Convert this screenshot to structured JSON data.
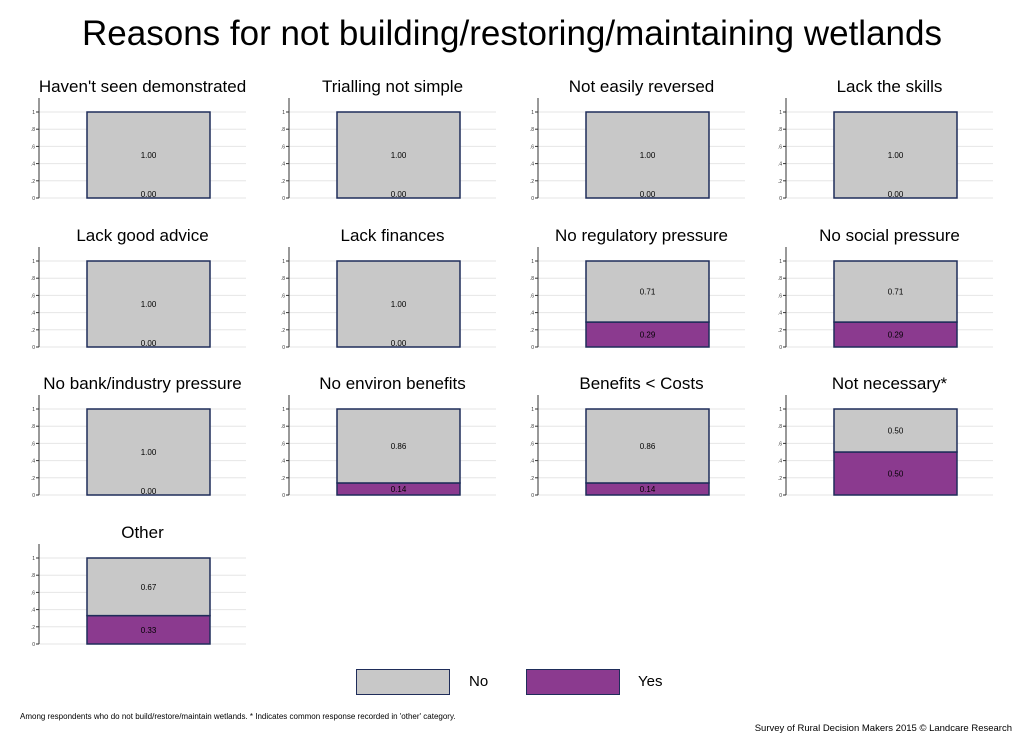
{
  "title": "Reasons for not building/restoring/maintaining wetlands",
  "chart_data": {
    "type": "bar",
    "stacked": true,
    "ylim": [
      0,
      1
    ],
    "yticks": [
      "0",
      ".2",
      ".4",
      ".6",
      ".8",
      "1"
    ],
    "grid": true,
    "legend_position": "bottom",
    "series_order": [
      "Yes",
      "No"
    ],
    "colors": {
      "No": "#c8c8c8",
      "Yes": "#8b3a8f",
      "border": "#1f2d5a"
    },
    "panels": [
      {
        "title": "Haven't seen demonstrated",
        "No": 1.0,
        "Yes": 0.0,
        "no_label": "1.00",
        "yes_label": "0.00"
      },
      {
        "title": "Trialling not simple",
        "No": 1.0,
        "Yes": 0.0,
        "no_label": "1.00",
        "yes_label": "0.00"
      },
      {
        "title": "Not easily reversed",
        "No": 1.0,
        "Yes": 0.0,
        "no_label": "1.00",
        "yes_label": "0.00"
      },
      {
        "title": "Lack the skills",
        "No": 1.0,
        "Yes": 0.0,
        "no_label": "1.00",
        "yes_label": "0.00"
      },
      {
        "title": "Lack good advice",
        "No": 1.0,
        "Yes": 0.0,
        "no_label": "1.00",
        "yes_label": "0.00"
      },
      {
        "title": "Lack finances",
        "No": 1.0,
        "Yes": 0.0,
        "no_label": "1.00",
        "yes_label": "0.00"
      },
      {
        "title": "No regulatory pressure",
        "No": 0.71,
        "Yes": 0.29,
        "no_label": "0.71",
        "yes_label": "0.29"
      },
      {
        "title": "No social pressure",
        "No": 0.71,
        "Yes": 0.29,
        "no_label": "0.71",
        "yes_label": "0.29"
      },
      {
        "title": "No bank/industry pressure",
        "No": 1.0,
        "Yes": 0.0,
        "no_label": "1.00",
        "yes_label": "0.00"
      },
      {
        "title": "No environ benefits",
        "No": 0.86,
        "Yes": 0.14,
        "no_label": "0.86",
        "yes_label": "0.14"
      },
      {
        "title": "Benefits < Costs",
        "No": 0.86,
        "Yes": 0.14,
        "no_label": "0.86",
        "yes_label": "0.14"
      },
      {
        "title": "Not necessary*",
        "No": 0.5,
        "Yes": 0.5,
        "no_label": "0.50",
        "yes_label": "0.50"
      },
      {
        "title": "Other",
        "No": 0.67,
        "Yes": 0.33,
        "no_label": "0.67",
        "yes_label": "0.33"
      }
    ]
  },
  "legend": {
    "no": "No",
    "yes": "Yes"
  },
  "footnote": "Among respondents who do not build/restore/maintain wetlands. * Indicates common response recorded in 'other' category.",
  "credit": "Survey of Rural Decision Makers 2015 © Landcare Research"
}
